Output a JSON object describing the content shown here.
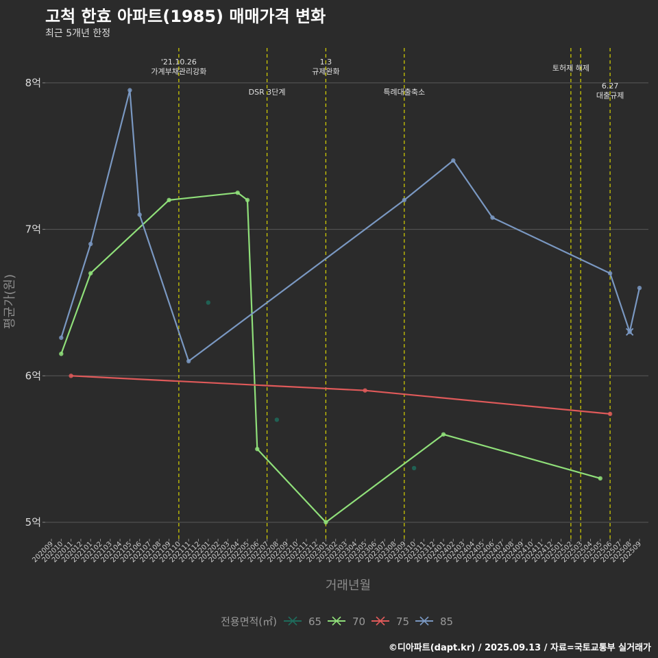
{
  "title": "고척 한효 아파트(1985) 매매가격 변화",
  "subtitle": "최근 5개년 한정",
  "caption": "©디아파트(dapt.kr) / 2025.09.13 / 자료=국토교통부 실거래가",
  "chart_data": {
    "type": "line",
    "xlabel": "거래년월",
    "ylabel": "평균가(원)",
    "ylim": [
      4.87,
      8.3
    ],
    "yticks": [
      5,
      6,
      7,
      8
    ],
    "ytick_labels": [
      "5억",
      "6억",
      "7억",
      "8억"
    ],
    "categories": [
      "202009",
      "202010",
      "202011",
      "202012",
      "202101",
      "202102",
      "202103",
      "202104",
      "202105",
      "202106",
      "202107",
      "202108",
      "202109",
      "202110",
      "202111",
      "202112",
      "202201",
      "202202",
      "202203",
      "202204",
      "202205",
      "202206",
      "202207",
      "202208",
      "202209",
      "202210",
      "202211",
      "202212",
      "202301",
      "202302",
      "202303",
      "202304",
      "202305",
      "202306",
      "202307",
      "202308",
      "202309",
      "202310",
      "202311",
      "202312",
      "202401",
      "202402",
      "202403",
      "202404",
      "202405",
      "202406",
      "202407",
      "202408",
      "202409",
      "202410",
      "202411",
      "202412",
      "202501",
      "202502",
      "202503",
      "202504",
      "202505",
      "202506",
      "202507",
      "202508",
      "202509"
    ],
    "series": [
      {
        "name": "65",
        "color": "#1f6b5c",
        "line": false,
        "points": [
          [
            "202201",
            6.5
          ],
          [
            "202208",
            5.7
          ],
          [
            "202310",
            5.37
          ]
        ]
      },
      {
        "name": "70",
        "color": "#90e07a",
        "line": true,
        "points": [
          [
            "202010",
            6.15
          ],
          [
            "202101",
            6.7
          ],
          [
            "202109",
            7.2
          ],
          [
            "202204",
            7.25
          ],
          [
            "202205",
            7.2
          ],
          [
            "202206",
            5.5
          ],
          [
            "202301",
            5.0
          ],
          [
            "202401",
            5.6
          ],
          [
            "202505",
            5.3
          ]
        ]
      },
      {
        "name": "75",
        "color": "#e05a5a",
        "line": true,
        "points": [
          [
            "202011",
            6.0
          ],
          [
            "202305",
            5.9
          ],
          [
            "202506",
            5.74
          ]
        ]
      },
      {
        "name": "85",
        "color": "#7a98c2",
        "line": true,
        "points": [
          [
            "202010",
            6.26
          ],
          [
            "202101",
            6.9
          ],
          [
            "202105",
            7.95
          ],
          [
            "202106",
            7.1
          ],
          [
            "202111",
            6.1
          ],
          [
            "202309",
            7.2
          ],
          [
            "202402",
            7.47
          ],
          [
            "202406",
            7.08
          ],
          [
            "202506",
            6.7
          ],
          [
            "202508",
            6.3
          ],
          [
            "202509",
            6.6
          ]
        ]
      }
    ],
    "vlines": [
      {
        "x": "202110",
        "label": "'21.10.26\n가계부채관리강화",
        "pos": "top"
      },
      {
        "x": "202207",
        "label": "DSR 3단계",
        "pos": "low"
      },
      {
        "x": "202301",
        "label": "1.3\n규제완화",
        "pos": "top"
      },
      {
        "x": "202309",
        "label": "특례대출축소",
        "pos": "low"
      },
      {
        "x": "202502",
        "label": "토허제 해제",
        "pos": "mid"
      },
      {
        "x": "202503",
        "label": "",
        "pos": "mid"
      },
      {
        "x": "202506",
        "label": "6.27\n대출규제",
        "pos": "lowtop"
      }
    ],
    "legend": {
      "title": "전용면적(㎡)",
      "position": "bottom"
    }
  }
}
